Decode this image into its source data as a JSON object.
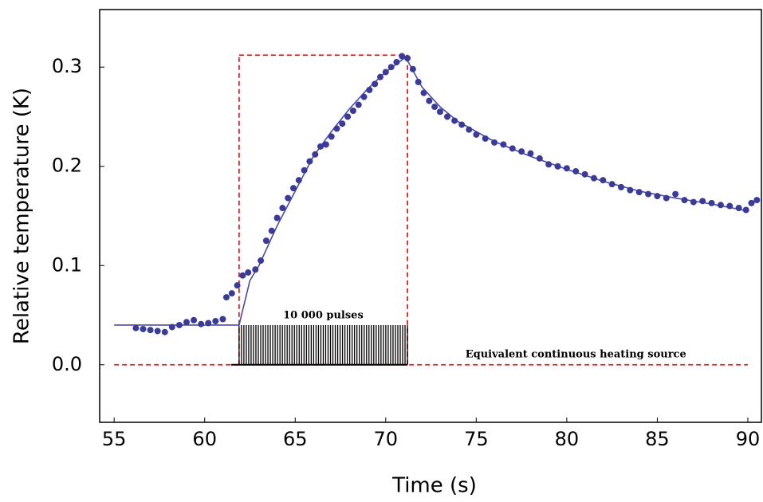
{
  "chart_data": {
    "type": "scatter",
    "x_label": "Time (s)",
    "y_label": "Relative temperature (K)",
    "xlim": [
      54.2,
      90.75
    ],
    "ylim": [
      -0.058,
      0.358
    ],
    "xticks": [
      55,
      60,
      65,
      70,
      75,
      80,
      85,
      90
    ],
    "yticks": [
      {
        "value": 0,
        "label": "0.0"
      },
      0.1,
      0.2,
      0.3
    ],
    "series": [
      {
        "color": "#3a3a9a",
        "x": [
          56.2,
          56.6,
          57.0,
          57.4,
          57.8,
          58.2,
          58.6,
          59.0,
          59.4,
          59.8,
          60.2,
          60.6,
          61.0,
          61.2,
          61.5,
          61.8,
          62.1,
          62.4,
          62.8,
          63.1,
          63.4,
          63.7,
          64.0,
          64.3,
          64.6,
          64.9,
          65.2,
          65.5,
          65.8,
          66.1,
          66.4,
          66.7,
          67.0,
          67.3,
          67.6,
          67.9,
          68.2,
          68.5,
          68.8,
          69.1,
          69.4,
          69.7,
          70.0,
          70.3,
          70.6,
          70.9,
          71.2,
          71.5,
          71.8,
          72.1,
          72.4,
          72.7,
          73.0,
          73.4,
          73.8,
          74.2,
          74.6,
          75.0,
          75.5,
          76.0,
          76.5,
          77.0,
          77.5,
          78.0,
          78.5,
          79.0,
          79.5,
          80.0,
          80.5,
          81.0,
          81.5,
          82.0,
          82.5,
          83.0,
          83.5,
          84.0,
          84.5,
          85.0,
          85.5,
          86.0,
          86.5,
          87.0,
          87.5,
          88.0,
          88.5,
          89.0,
          89.5,
          89.9,
          90.2,
          90.5
        ],
        "values": [
          0.037,
          0.036,
          0.035,
          0.034,
          0.033,
          0.038,
          0.04,
          0.043,
          0.045,
          0.041,
          0.042,
          0.044,
          0.046,
          0.068,
          0.072,
          0.08,
          0.09,
          0.093,
          0.096,
          0.105,
          0.125,
          0.135,
          0.148,
          0.158,
          0.168,
          0.178,
          0.186,
          0.196,
          0.205,
          0.212,
          0.22,
          0.222,
          0.23,
          0.238,
          0.243,
          0.25,
          0.256,
          0.262,
          0.27,
          0.277,
          0.283,
          0.29,
          0.295,
          0.3,
          0.305,
          0.311,
          0.309,
          0.298,
          0.285,
          0.274,
          0.266,
          0.26,
          0.255,
          0.25,
          0.246,
          0.242,
          0.237,
          0.232,
          0.228,
          0.224,
          0.222,
          0.218,
          0.215,
          0.213,
          0.208,
          0.202,
          0.2,
          0.198,
          0.195,
          0.192,
          0.188,
          0.186,
          0.182,
          0.179,
          0.176,
          0.174,
          0.172,
          0.17,
          0.168,
          0.172,
          0.166,
          0.164,
          0.165,
          0.163,
          0.161,
          0.16,
          0.158,
          0.156,
          0.163,
          0.166
        ]
      }
    ],
    "fit": {
      "color": "#4a4aa8",
      "x": [
        55,
        61.9,
        62.5,
        63,
        64,
        65,
        66,
        67,
        68,
        69,
        70,
        71.1,
        72,
        73,
        74,
        76,
        78,
        80,
        82,
        84,
        86,
        88,
        90
      ],
      "values": [
        0.04,
        0.04,
        0.085,
        0.1,
        0.14,
        0.175,
        0.21,
        0.235,
        0.258,
        0.278,
        0.295,
        0.31,
        0.28,
        0.26,
        0.245,
        0.225,
        0.21,
        0.197,
        0.185,
        0.175,
        0.168,
        0.162,
        0.155
      ]
    },
    "heating_source": {
      "color": "#e02020",
      "x": [
        61.9,
        71.2
      ],
      "y": 0.312,
      "baseline_x": [
        55,
        90
      ],
      "baseline_y": 0
    },
    "pulses": {
      "color": "#000000",
      "x": [
        61.9,
        71.2
      ],
      "height": 0.04,
      "label": "10 000 pulses"
    },
    "heating_label": "Equivalent continuous heating source"
  }
}
